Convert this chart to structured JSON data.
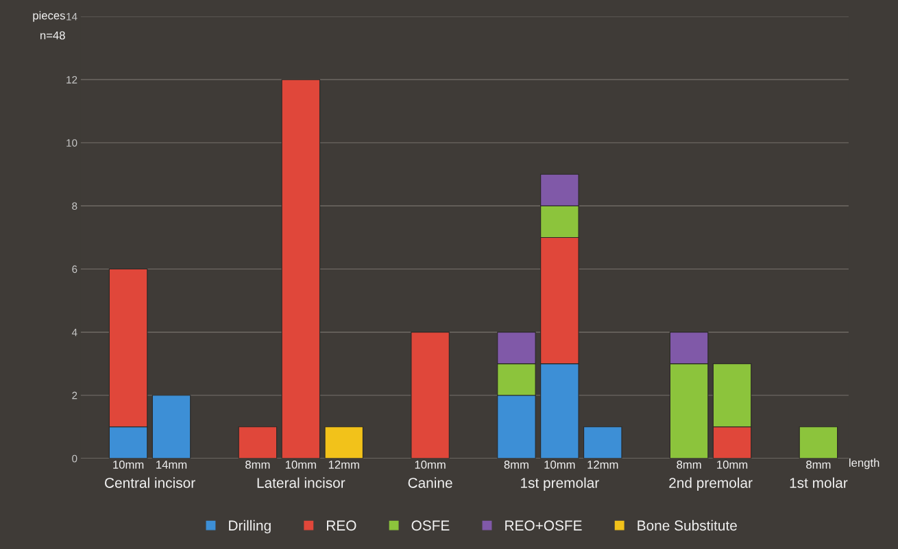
{
  "chart_data": {
    "type": "bar",
    "stacked": true,
    "ylabel": "pieces",
    "xlabel": "length",
    "categories": [
      "10mm",
      "14mm",
      null,
      "8mm",
      "10mm",
      "12mm",
      null,
      "10mm",
      null,
      "8mm",
      "10mm",
      "12mm",
      null,
      "8mm",
      "10mm",
      null,
      "8mm"
    ],
    "series": [
      {
        "name": "Drilling",
        "color": "#3d8fd6",
        "values": [
          1,
          2,
          null,
          null,
          null,
          null,
          null,
          null,
          null,
          2,
          3,
          1,
          null,
          null,
          null,
          null,
          null
        ]
      },
      {
        "name": "REO",
        "color": "#e0473a",
        "values": [
          5,
          null,
          null,
          1,
          12,
          null,
          null,
          4,
          null,
          null,
          4,
          null,
          null,
          null,
          1,
          null,
          null
        ]
      },
      {
        "name": "OSFE",
        "color": "#8cc43c",
        "values": [
          null,
          null,
          null,
          null,
          null,
          null,
          null,
          null,
          null,
          1,
          1,
          null,
          null,
          3,
          2,
          null,
          1
        ]
      },
      {
        "name": "REO+OSFE",
        "color": "#8059a8",
        "values": [
          null,
          null,
          null,
          null,
          null,
          null,
          null,
          null,
          null,
          1,
          1,
          null,
          null,
          1,
          null,
          null,
          null
        ]
      },
      {
        "name": "Bone Substitute",
        "color": "#f2c21a",
        "values": [
          null,
          null,
          null,
          null,
          null,
          1,
          null,
          null,
          null,
          null,
          null,
          null,
          null,
          null,
          null,
          null,
          null
        ]
      }
    ],
    "ylim": [
      0,
      14
    ],
    "yticks": [
      0,
      2,
      4,
      6,
      8,
      10,
      12,
      14
    ],
    "grid": "y",
    "legend": "bottom",
    "annotations": [
      "n=48",
      "Central incisor",
      "Lateral incisor",
      "Canine",
      "1st premolar",
      "2nd premolar",
      "1st molar"
    ]
  }
}
